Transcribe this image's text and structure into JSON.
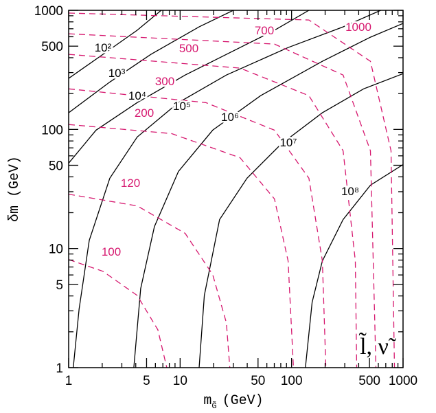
{
  "chart_data": {
    "type": "line",
    "xlog": true,
    "ylog": true,
    "xlim": [
      1,
      1000
    ],
    "ylim": [
      1,
      1000
    ],
    "xticks": [
      1,
      5,
      10,
      50,
      100,
      500,
      1000
    ],
    "yticks": [
      1,
      5,
      10,
      50,
      100,
      500,
      1000
    ],
    "xminorticks": [
      2,
      3,
      4,
      6,
      7,
      8,
      9,
      20,
      30,
      40,
      60,
      70,
      80,
      90,
      200,
      300,
      400,
      600,
      700,
      800,
      900
    ],
    "yminorticks": [
      2,
      3,
      4,
      6,
      7,
      8,
      9,
      20,
      30,
      40,
      60,
      70,
      80,
      90,
      200,
      300,
      400,
      600,
      700,
      800,
      900
    ],
    "xlabel": "m",
    "xlabel_sub": "G̃",
    "xlabel_unit": "(GeV)",
    "ylabel": "δm (GeV)",
    "annotation": "l̃, ν̃",
    "series": [
      {
        "name": "10²",
        "color": "#000000",
        "dash": false,
        "x": [
          1,
          2.03,
          4.12,
          6.77
        ],
        "values": [
          268,
          427,
          680,
          1000
        ]
      },
      {
        "name": "10³",
        "color": "#000000",
        "dash": false,
        "x": [
          1,
          2.34,
          5.47,
          14.8,
          30
        ],
        "values": [
          138,
          250,
          427,
          726,
          1000
        ]
      },
      {
        "name": "10⁴",
        "color": "#000000",
        "dash": false,
        "x": [
          1,
          1.76,
          4.12,
          11.1,
          34.5,
          70.2,
          143
        ],
        "values": [
          52.1,
          98.6,
          168,
          286,
          487,
          679,
          1000
        ]
      },
      {
        "name": "10⁵",
        "color": "#000000",
        "dash": false,
        "x": [
          1.1,
          1.24,
          1.53,
          2.34,
          4.12,
          9.66,
          26,
          93.1,
          290,
          631
        ],
        "values": [
          1,
          3.1,
          11.7,
          38.9,
          86.3,
          168,
          286,
          487,
          726,
          1000
        ]
      },
      {
        "name": "10⁶",
        "color": "#000000",
        "dash": false,
        "x": [
          3.84,
          4.43,
          5.88,
          9.66,
          19.6,
          52.8,
          189,
          510,
          1000
        ],
        "values": [
          1,
          4.62,
          15.3,
          44.4,
          98.6,
          192,
          373,
          595,
          776
        ]
      },
      {
        "name": "10⁷",
        "color": "#000000",
        "dash": false,
        "x": [
          14.8,
          16.5,
          22.6,
          39.8,
          80.9,
          189,
          443,
          1000
        ],
        "values": [
          1,
          4.04,
          17.5,
          38.9,
          75.6,
          138,
          219,
          294
        ]
      },
      {
        "name": "10⁸",
        "color": "#000000",
        "dash": false,
        "x": [
          133,
          153,
          189,
          290,
          510,
          1000
        ],
        "values": [
          1,
          3.54,
          7.87,
          17.5,
          34,
          50.7
        ]
      },
      {
        "name": "100",
        "color": "#d6186f",
        "dash": true,
        "x": [
          1,
          2.03,
          4.12,
          6.31,
          7.59
        ],
        "values": [
          8.08,
          6.44,
          4.04,
          2.08,
          1
        ]
      },
      {
        "name": "120",
        "color": "#d6186f",
        "dash": true,
        "x": [
          1,
          4.12,
          11.1,
          19.6,
          26,
          27.9
        ],
        "values": [
          28.6,
          22.8,
          13.4,
          6.03,
          2.38,
          1
        ]
      },
      {
        "name": "200",
        "color": "#d6186f",
        "dash": true,
        "x": [
          1,
          8.38,
          34.5,
          70.2,
          93.1,
          104
        ],
        "values": [
          110,
          92.3,
          57.9,
          26.1,
          7.87,
          1
        ]
      },
      {
        "name": "300",
        "color": "#d6186f",
        "dash": true,
        "x": [
          1,
          17,
          70.2,
          143,
          189,
          203
        ],
        "values": [
          219,
          168,
          98.6,
          38.9,
          7.87,
          1
        ]
      },
      {
        "name": "500",
        "color": "#d6186f",
        "dash": true,
        "x": [
          1,
          34.5,
          143,
          290,
          373,
          384
        ],
        "values": [
          427,
          327,
          192,
          66.2,
          7.87,
          1
        ]
      },
      {
        "name": "700",
        "color": "#d6186f",
        "dash": true,
        "x": [
          1,
          70.2,
          290,
          510,
          571
        ],
        "values": [
          635,
          521,
          286,
          66.2,
          1
        ]
      },
      {
        "name": "1000",
        "color": "#d6186f",
        "dash": true,
        "x": [
          1,
          143,
          510,
          780,
          838
        ],
        "values": [
          948,
          829,
          373,
          66.2,
          1
        ]
      }
    ]
  }
}
